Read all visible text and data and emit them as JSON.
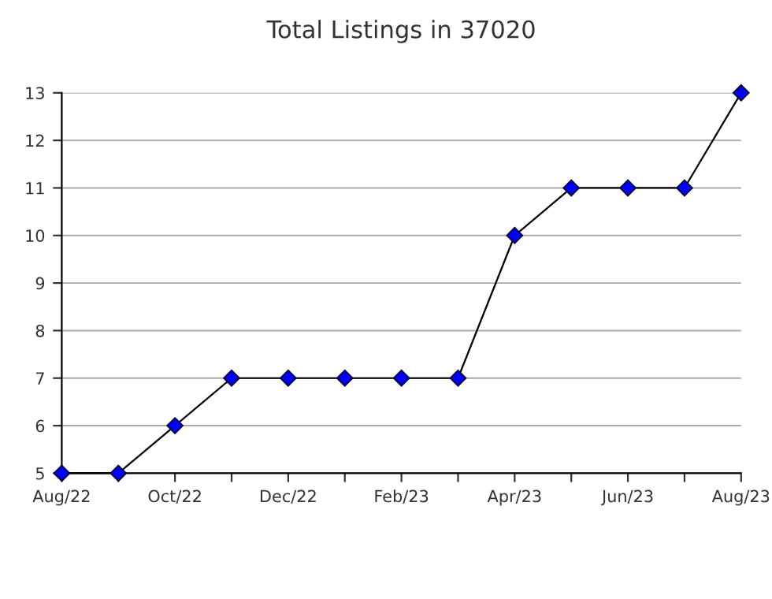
{
  "chart_data": {
    "type": "line",
    "title": "Total Listings in 37020",
    "categories": [
      "Aug/22",
      null,
      "Oct/22",
      null,
      "Dec/22",
      null,
      "Feb/23",
      null,
      "Apr/23",
      null,
      "Jun/23",
      null,
      "Aug/23"
    ],
    "series": [
      {
        "color": "#0000ff",
        "values": [
          5,
          5,
          6,
          7,
          7,
          7,
          7,
          7,
          10,
          11,
          11,
          11,
          13
        ]
      }
    ],
    "ylim": [
      5,
      13
    ],
    "yticks": [
      5,
      6,
      7,
      8,
      9,
      10,
      11,
      12,
      13
    ],
    "grid": "y",
    "marker": "diamond",
    "line_style": "solid",
    "legend": false
  }
}
